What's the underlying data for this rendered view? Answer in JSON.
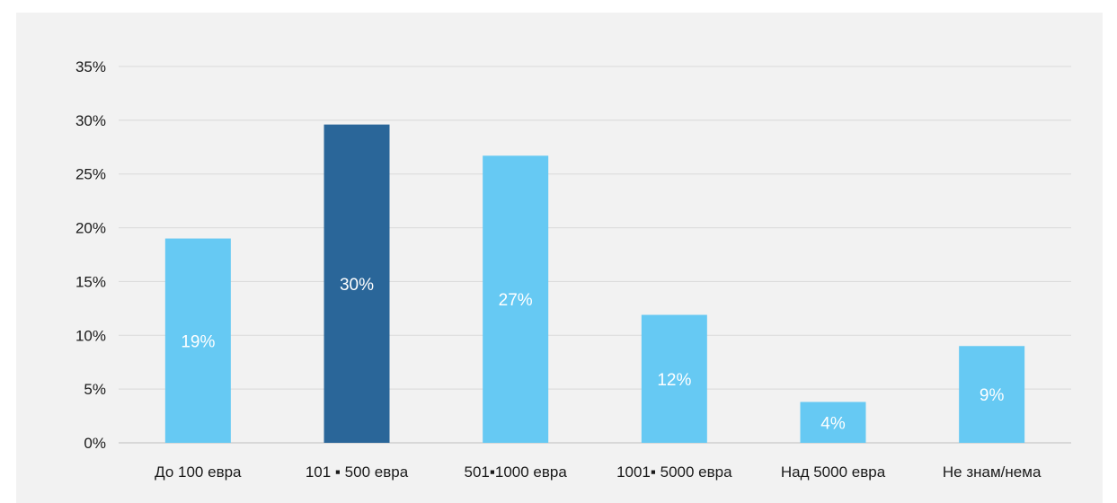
{
  "chart_data": {
    "type": "bar",
    "title": "",
    "xlabel": "",
    "ylabel": "",
    "categories": [
      "До 100 евра",
      "101 ▪ 500 евра",
      "501▪1000 евра",
      "1001▪ 5000 евра",
      "Над 5000 евра",
      "Не знам/нема"
    ],
    "values": [
      19,
      29.6,
      26.7,
      11.9,
      3.8,
      9
    ],
    "data_labels": [
      "19%",
      "30%",
      "27%",
      "12%",
      "4%",
      "9%"
    ],
    "ylim": [
      0,
      35
    ],
    "yticks": [
      0,
      5,
      10,
      15,
      20,
      25,
      30,
      35
    ],
    "ytick_labels": [
      "0%",
      "5%",
      "10%",
      "15%",
      "20%",
      "25%",
      "30%",
      "35%"
    ],
    "grid": true,
    "legend": "none",
    "highlight_index": 1
  },
  "colors": {
    "bar": "#66c9f3",
    "bar_highlight": "#2a6699",
    "grid": "#d9d9d9",
    "axis": "#bfbfbf",
    "background": "#f2f2f2"
  }
}
